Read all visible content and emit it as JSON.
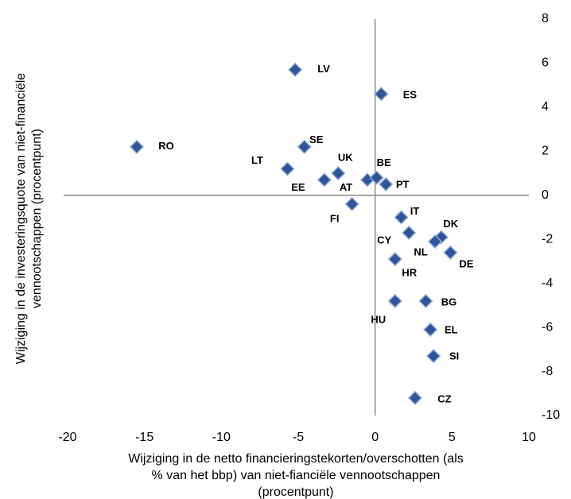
{
  "chart_data": {
    "type": "scatter",
    "x_label": [
      "Wijziging in de netto financieringstekorten/overschotten (als",
      "% van het bbp) van niet-fianciële vennootschappen",
      "(procentpunt)"
    ],
    "y_label": [
      "Wijziging in de investeringsquote van niet-financiële",
      "vennootschappen (procentpunt)"
    ],
    "series": [
      {
        "name": null,
        "color": "#2f5597",
        "labels": [
          "LV",
          "ES",
          "RO",
          "SE",
          "LT",
          "UK",
          "EE",
          "AT",
          "BE",
          "PT",
          "FI",
          "IT",
          "CY",
          "DK",
          "NL",
          "DE",
          "HR",
          "BG",
          "HU",
          "EL",
          "SI",
          "CZ"
        ],
        "x": [
          -5.2,
          0.4,
          -15.5,
          -4.6,
          -5.7,
          -2.4,
          -3.3,
          -0.5,
          0.1,
          0.7,
          -1.5,
          1.7,
          2.2,
          4.3,
          3.9,
          4.9,
          1.3,
          3.3,
          1.3,
          3.6,
          3.8,
          2.6
        ],
        "values": [
          5.7,
          4.6,
          2.2,
          2.2,
          1.2,
          1.0,
          0.7,
          0.7,
          0.8,
          0.5,
          -0.4,
          -1.0,
          -1.7,
          -1.9,
          -2.1,
          -2.6,
          -2.9,
          -4.8,
          -4.8,
          -6.1,
          -7.3,
          -9.2
        ]
      }
    ],
    "xlim": [
      -20,
      10
    ],
    "xticks": [
      -20,
      -15,
      -10,
      -5,
      0,
      5,
      10
    ],
    "ylim": [
      -10,
      8
    ],
    "yticks": [
      8,
      6,
      4,
      2,
      0,
      -2,
      -4,
      -6,
      -8,
      -10
    ]
  }
}
